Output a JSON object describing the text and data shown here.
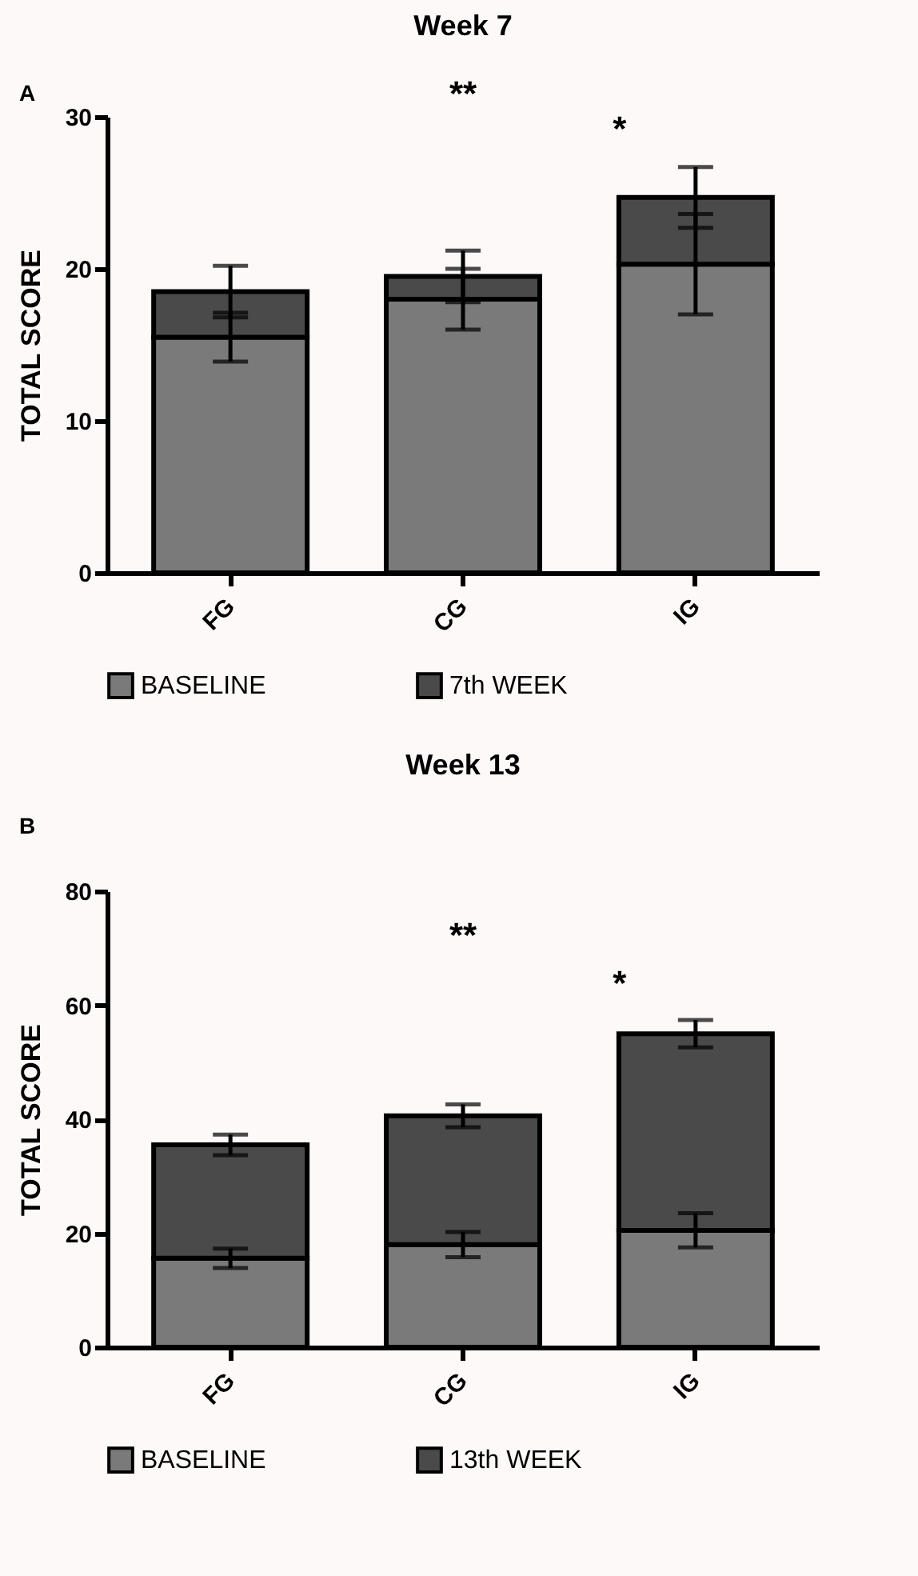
{
  "chart_data": [
    {
      "type": "bar",
      "title": "Week 7",
      "ylabel": "TOTAL SCORE",
      "categories": [
        "FG",
        "CG",
        "IG"
      ],
      "stacked": true,
      "legend": "bottom",
      "ylim": [
        0,
        30
      ],
      "yticks": [
        0,
        10,
        20,
        30
      ],
      "annotations": [
        "A",
        "**",
        "*"
      ],
      "series": [
        {
          "name": "BASELINE",
          "color": "#7a7a7a",
          "values": [
            15.5,
            18.0,
            20.3
          ],
          "errors": [
            1.6,
            2.0,
            3.3
          ]
        },
        {
          "name": "7th WEEK",
          "color": "#4a4a4a",
          "values": [
            3.0,
            1.5,
            4.4
          ],
          "errors": [
            1.7,
            1.7,
            2.0
          ]
        }
      ]
    },
    {
      "type": "bar",
      "title": "Week 13",
      "ylabel": "TOTAL SCORE",
      "categories": [
        "FG",
        "CG",
        "IG"
      ],
      "stacked": true,
      "legend": "bottom",
      "ylim": [
        0,
        80
      ],
      "yticks": [
        0,
        20,
        40,
        60,
        80
      ],
      "annotations": [
        "B",
        "**",
        "*"
      ],
      "series": [
        {
          "name": "BASELINE",
          "color": "#7a7a7a",
          "values": [
            15.6,
            18.0,
            20.5
          ],
          "errors": [
            1.7,
            2.2,
            3.0
          ]
        },
        {
          "name": "13th WEEK",
          "color": "#4a4a4a",
          "values": [
            19.9,
            22.6,
            34.5
          ],
          "errors": [
            1.8,
            2.0,
            2.4
          ]
        }
      ]
    }
  ]
}
